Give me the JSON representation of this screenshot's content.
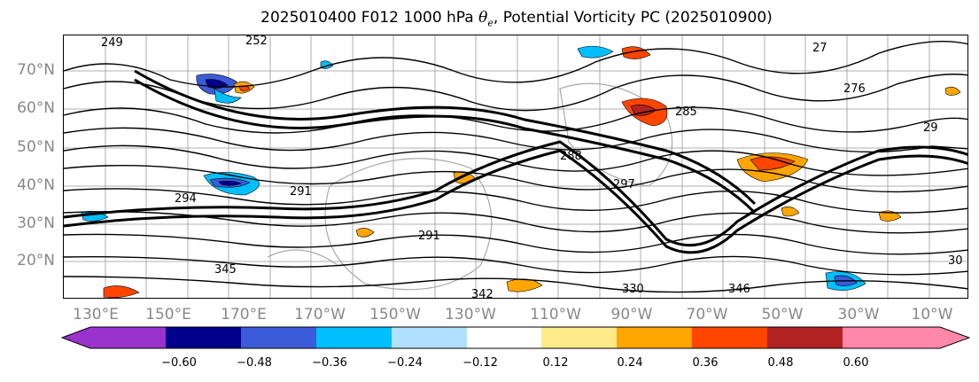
{
  "title": {
    "prefix": "2025010400 F012 1000 hPa ",
    "symbol_base": "θ",
    "symbol_sub": "e",
    "suffix": ", Potential Vorticity PC (2025010900)"
  },
  "map": {
    "lat_labels": [
      "70°N",
      "60°N",
      "50°N",
      "40°N",
      "30°N",
      "20°N"
    ],
    "lon_labels": [
      "130°E",
      "150°E",
      "170°E",
      "170°W",
      "150°W",
      "130°W",
      "110°W",
      "90°W",
      "70°W",
      "50°W",
      "30°W",
      "10°W"
    ],
    "contour_labels": [
      "249",
      "252",
      "291",
      "294",
      "288",
      "297",
      "342",
      "346",
      "330",
      "27",
      "276",
      "285",
      "29",
      "291",
      "30",
      "345"
    ]
  },
  "colorbar": {
    "colors": [
      "#9932CC",
      "#00008B",
      "#3B5BD9",
      "#00BFFF",
      "#B0E0FF",
      "#FFFFFF",
      "#FFEB8A",
      "#FFA500",
      "#FF4500",
      "#B22222",
      "#FF88AA"
    ],
    "tick_labels": [
      "−0.60",
      "−0.48",
      "−0.36",
      "−0.24",
      "−0.12",
      "0.12",
      "0.24",
      "0.36",
      "0.48",
      "0.60"
    ]
  }
}
